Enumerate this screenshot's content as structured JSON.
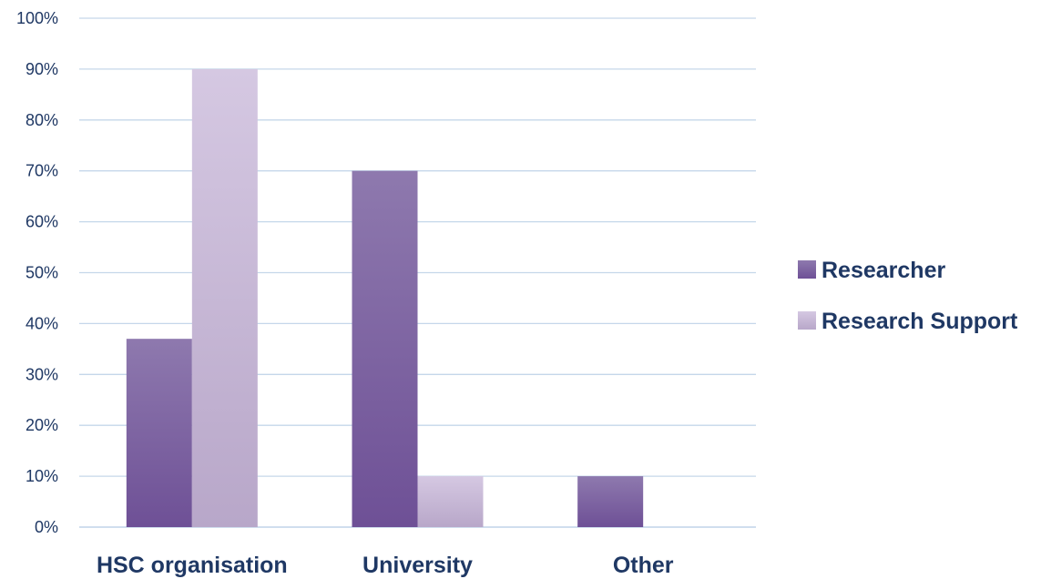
{
  "chart_data": {
    "type": "bar",
    "categories": [
      "HSC organisation",
      "University",
      "Other"
    ],
    "series": [
      {
        "name": "Researcher",
        "values": [
          37,
          70,
          10
        ]
      },
      {
        "name": "Research Support",
        "values": [
          90,
          10,
          0
        ]
      }
    ],
    "ylim": [
      0,
      100
    ],
    "yticks": [
      0,
      10,
      20,
      30,
      40,
      50,
      60,
      70,
      80,
      90,
      100
    ],
    "ytick_labels": [
      "0%",
      "10%",
      "20%",
      "30%",
      "40%",
      "50%",
      "60%",
      "70%",
      "80%",
      "90%",
      "100%"
    ],
    "title": "",
    "xlabel": "",
    "ylabel": "",
    "grid": true,
    "legend_position": "right",
    "colors": {
      "researcher_top": "#8e79ae",
      "researcher_bottom": "#6e5096",
      "support_top": "#d5c8e2",
      "support_bottom": "#b8a7c9",
      "gridline": "#c5d7ea",
      "text": "#1f3864"
    }
  }
}
